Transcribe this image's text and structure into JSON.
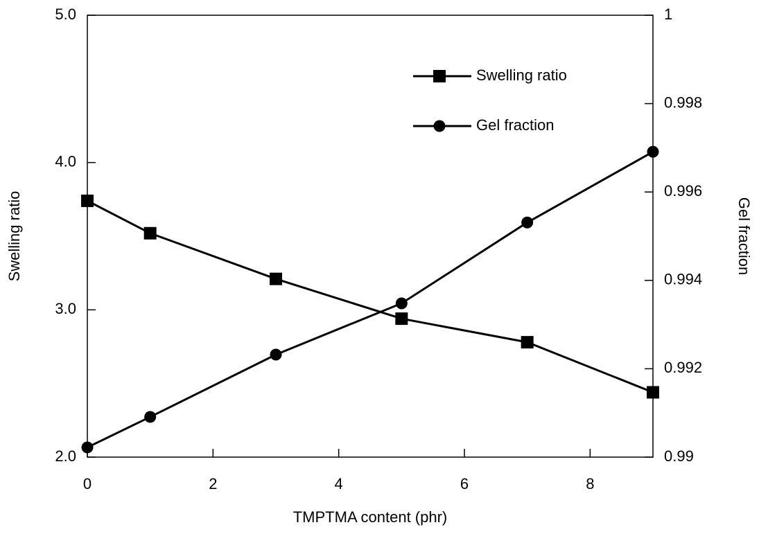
{
  "chart_data": {
    "type": "line",
    "x_label": "TMPTMA content (phr)",
    "y_label": "Swelling ratio",
    "y2_label": "Gel fraction",
    "xlim": [
      0,
      9
    ],
    "xticks": [
      0,
      2,
      4,
      6,
      8
    ],
    "ylim": [
      2,
      5
    ],
    "yticks": [
      {
        "value": 2,
        "label": "2.0"
      },
      {
        "value": 3,
        "label": "3.0"
      },
      {
        "value": 4,
        "label": "4.0"
      },
      {
        "value": 5,
        "label": "5.0"
      }
    ],
    "y2lim": [
      0.99,
      1
    ],
    "y2ticks": [
      0.99,
      0.992,
      0.994,
      0.996,
      0.998,
      1
    ],
    "x": [
      0,
      1,
      3,
      5,
      7,
      9
    ],
    "series": [
      {
        "name": "Swelling ratio",
        "color": "#000000",
        "marker": "square",
        "values": [
          3.74,
          3.52,
          3.21,
          2.94,
          2.78,
          2.44
        ]
      },
      {
        "name": "Gel fraction",
        "color": "#000000",
        "marker": "circle",
        "axis": "y2",
        "values": [
          0.99022,
          0.99091,
          0.99232,
          0.99348,
          0.99531,
          0.99691
        ]
      }
    ]
  }
}
